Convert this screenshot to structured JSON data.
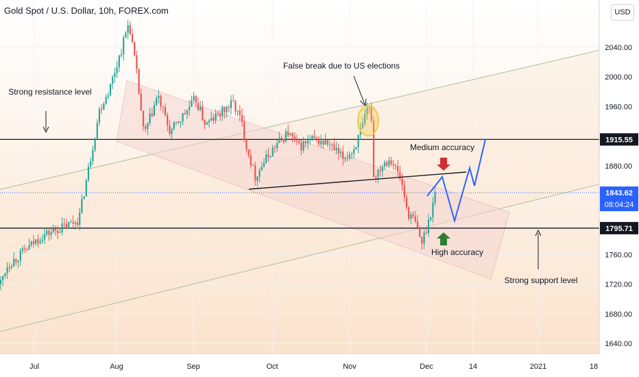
{
  "header": {
    "title": "Gold Spot / U.S. Dollar, 10h, FOREX.com",
    "currency_button": "USD"
  },
  "colors": {
    "up_candle": "#26a69a",
    "down_candle": "#ef5350",
    "channel_fill": "#f5d7d2",
    "channel_border": "#d9a7a7",
    "rising_band": "#b9c7a5",
    "projection": "#2962ff",
    "arrow_down": "#d32f2f",
    "arrow_up": "#2e7d32",
    "highlight_circle": "#f2c94c",
    "price_label_bg": "#131722",
    "last_price_bg": "#2962ff"
  },
  "chart_data": {
    "type": "candlestick",
    "symbol": "Gold Spot / U.S. Dollar",
    "interval": "10h",
    "source": "FOREX.com",
    "y_range": [
      1620,
      2090
    ],
    "y_ticks": [
      1640,
      1680,
      1720,
      1760,
      1800,
      1840,
      1880,
      1920,
      1960,
      2000,
      2040
    ],
    "y_tick_labels": [
      "1640.00",
      "1680.00",
      "1720.00",
      "1760.00",
      "1800.00",
      "1840.00",
      "1880.00",
      "1920.00",
      "1960.00",
      "2000.00",
      "2040.00"
    ],
    "x_axis_labels": [
      "Jul",
      "Aug",
      "Sep",
      "Oct",
      "Nov",
      "Dec",
      "14",
      "2021",
      "18"
    ],
    "price_levels": [
      {
        "label": "1915.55",
        "value": 1915.55,
        "style": "line"
      },
      {
        "label": "1795.71",
        "value": 1795.71,
        "style": "line"
      }
    ],
    "last_price": {
      "value": "1843.62",
      "countdown": "08:04:24"
    },
    "annotations": [
      {
        "text": "Strong resistance level"
      },
      {
        "text": "False break due to US elections"
      },
      {
        "text": "Medium accuracy"
      },
      {
        "text": "High accuracy"
      },
      {
        "text": "Strong support level"
      }
    ],
    "key_prices": {
      "start": 1720,
      "july_end_high": 1800,
      "august_peak": 2075,
      "august_pullback_low": 1865,
      "september_range": [
        1900,
        1975
      ],
      "late_september_low": 1850,
      "october_range": [
        1880,
        1930
      ],
      "november_spike_high": 1965,
      "november_drop_low": 1850,
      "november_end_low": 1765,
      "current": 1843.62
    }
  }
}
